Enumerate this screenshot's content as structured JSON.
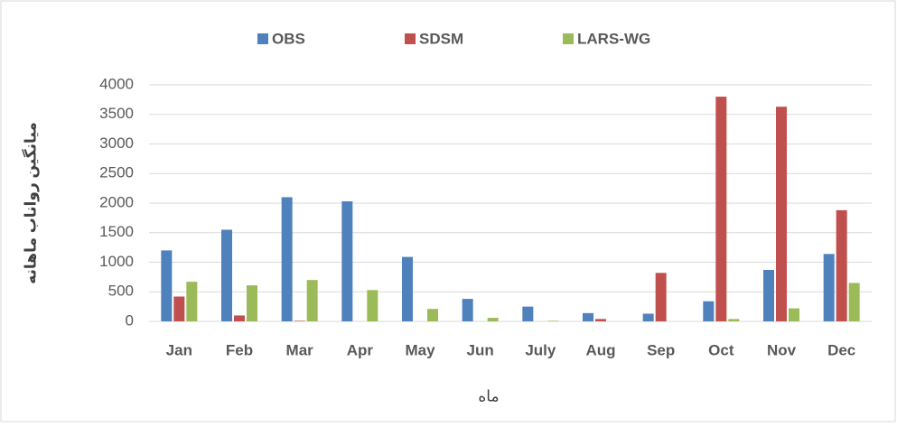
{
  "chart_data": {
    "type": "bar",
    "xlabel": "ماه",
    "ylabel": "میانگین رواناب ماهانه",
    "categories": [
      "Jan",
      "Feb",
      "Mar",
      "Apr",
      "May",
      "Jun",
      "July",
      "Aug",
      "Sep",
      "Oct",
      "Nov",
      "Dec"
    ],
    "series": [
      {
        "name": "OBS",
        "color": "#4f81bd",
        "values": [
          1200,
          1550,
          2100,
          2030,
          1090,
          380,
          250,
          140,
          130,
          340,
          870,
          1140
        ]
      },
      {
        "name": "SDSM",
        "color": "#c0504d",
        "values": [
          420,
          100,
          10,
          0,
          0,
          0,
          0,
          40,
          820,
          3800,
          3630,
          1880
        ]
      },
      {
        "name": "LARS-WG",
        "color": "#9bbb59",
        "values": [
          670,
          610,
          700,
          530,
          210,
          60,
          10,
          0,
          0,
          40,
          220,
          650
        ]
      }
    ],
    "ylim": [
      0,
      4000
    ],
    "yticks": [
      0,
      500,
      1000,
      1500,
      2000,
      2500,
      3000,
      3500,
      4000
    ],
    "grid": true,
    "legend": "top"
  }
}
